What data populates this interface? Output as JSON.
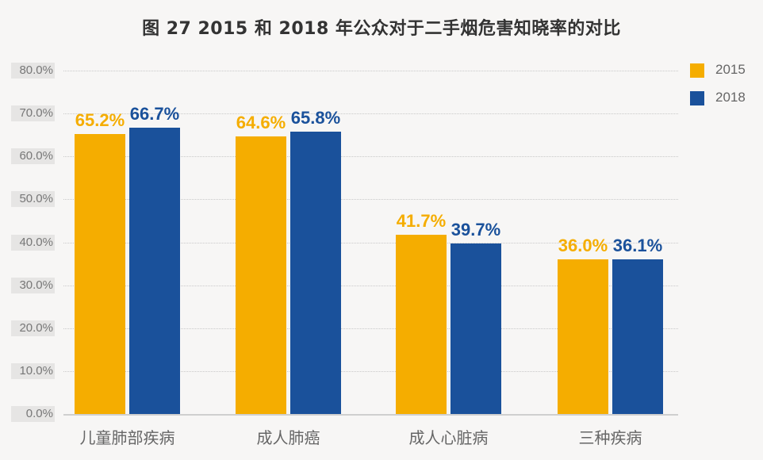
{
  "title": "图 27  2015 和 2018 年公众对于二手烟危害知晓率的对比",
  "colors": {
    "s2015": "#f5ad00",
    "s2018": "#1a519b",
    "background": "#f7f6f5"
  },
  "legend": [
    {
      "label": "2015",
      "color": "#f5ad00"
    },
    {
      "label": "2018",
      "color": "#1a519b"
    }
  ],
  "y_ticks": [
    "0.0%",
    "10.0%",
    "20.0%",
    "30.0%",
    "40.0%",
    "50.0%",
    "60.0%",
    "70.0%",
    "80.0%"
  ],
  "categories": [
    "儿童肺部疾病",
    "成人肺癌",
    "成人心脏病",
    "三种疾病"
  ],
  "bars": [
    {
      "v2015": "65.2%",
      "v2018": "66.7%"
    },
    {
      "v2015": "64.6%",
      "v2018": "65.8%"
    },
    {
      "v2015": "41.7%",
      "v2018": "39.7%"
    },
    {
      "v2015": "36.0%",
      "v2018": "36.1%"
    }
  ],
  "chart_data": {
    "type": "bar",
    "title": "图 27  2015 和 2018 年公众对于二手烟危害知晓率的对比",
    "categories": [
      "儿童肺部疾病",
      "成人肺癌",
      "成人心脏病",
      "三种疾病"
    ],
    "series": [
      {
        "name": "2015",
        "color": "#f5ad00",
        "values": [
          65.2,
          64.6,
          41.7,
          36.0
        ]
      },
      {
        "name": "2018",
        "color": "#1a519b",
        "values": [
          66.7,
          65.8,
          39.7,
          36.1
        ]
      }
    ],
    "xlabel": "",
    "ylabel": "",
    "ylim": [
      0,
      80
    ],
    "y_tick_step": 10,
    "y_tick_format": "percent, 1 decimal",
    "grid": "horizontal dotted",
    "legend_position": "top-right",
    "data_labels": true
  }
}
